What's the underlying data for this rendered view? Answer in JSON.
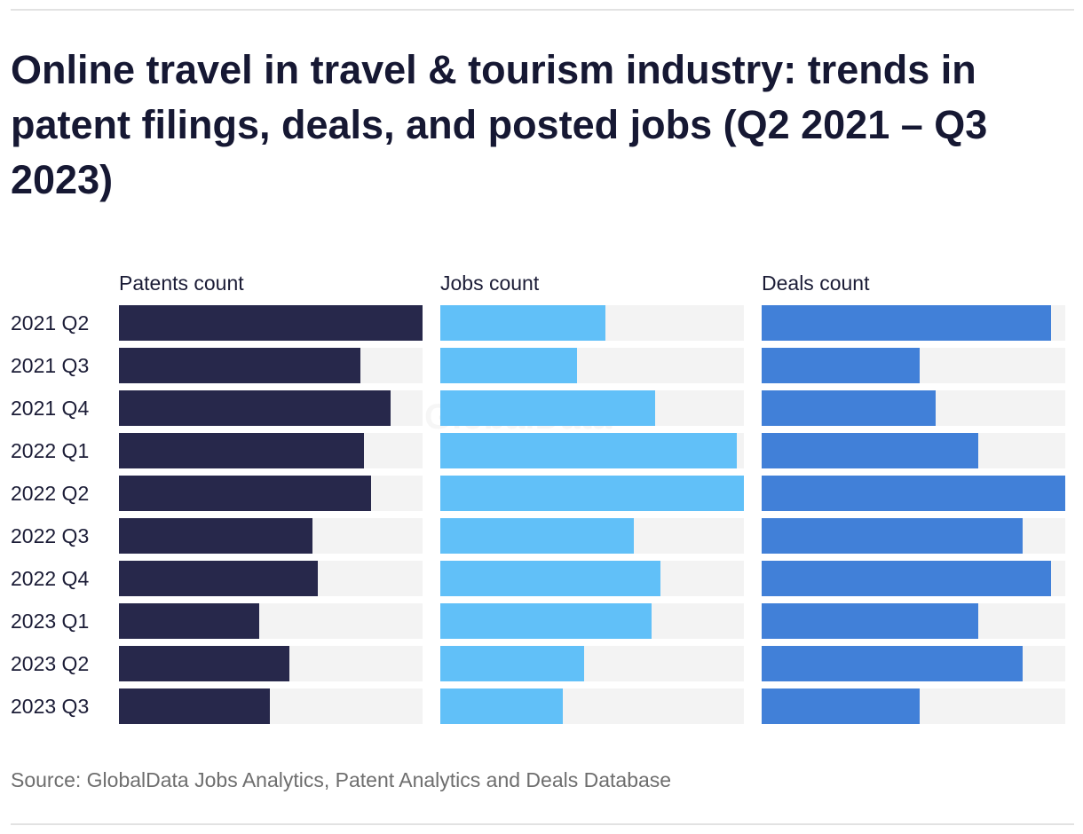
{
  "chart_data": {
    "type": "bar",
    "orientation": "horizontal",
    "title": "Online travel in travel & tourism industry: trends in patent filings, deals, and posted jobs (Q2 2021 – Q3 2023)",
    "source": "Source: GlobalData Jobs Analytics, Patent Analytics and Deals Database",
    "watermark": "GlobalData",
    "value_units": "relative (% of series max)",
    "categories": [
      "2021 Q2",
      "2021 Q3",
      "2021 Q4",
      "2022 Q1",
      "2022 Q2",
      "2022 Q3",
      "2022 Q4",
      "2023 Q1",
      "2023 Q2",
      "2023 Q3"
    ],
    "series": [
      {
        "name": "Patents count",
        "color": "#27284b",
        "values": [
          100,
          79.5,
          89.5,
          80.7,
          83,
          63.7,
          65.5,
          46.2,
          56.1,
          49.7
        ]
      },
      {
        "name": "Jobs count",
        "color": "#61c0f8",
        "values": [
          54.4,
          45,
          70.8,
          97.7,
          100,
          63.7,
          72.5,
          69.6,
          47.4,
          40.4
        ]
      },
      {
        "name": "Deals count",
        "color": "#4180d8",
        "values": [
          95.3,
          52,
          57.3,
          71.3,
          100,
          86,
          95.3,
          71.3,
          86,
          52
        ]
      }
    ],
    "track_color": "#f3f3f3",
    "grid": false,
    "legend": "none"
  }
}
